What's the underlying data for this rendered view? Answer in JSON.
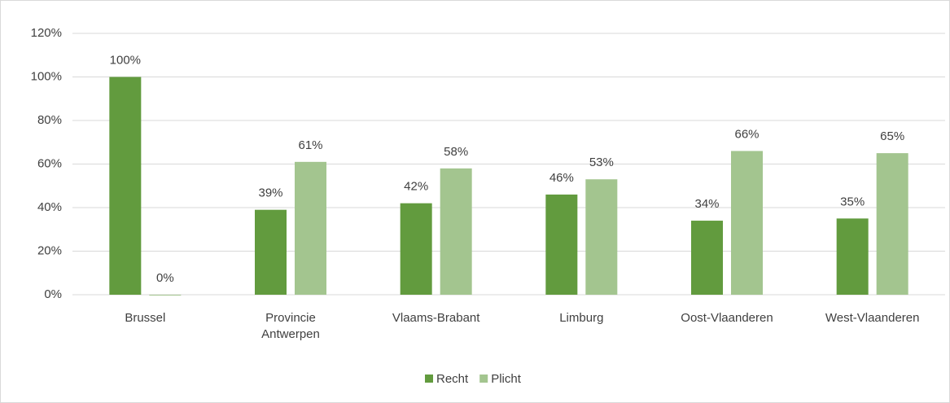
{
  "chart_data": {
    "type": "bar",
    "categories": [
      "Brussel",
      "Provincie Antwerpen",
      "Vlaams-Brabant",
      "Limburg",
      "Oost-Vlaanderen",
      "West-Vlaanderen"
    ],
    "series": [
      {
        "name": "Recht",
        "color": "#629b3e",
        "values": [
          100,
          39,
          42,
          46,
          34,
          35
        ],
        "value_labels": [
          "100%",
          "39%",
          "42%",
          "46%",
          "34%",
          "35%"
        ]
      },
      {
        "name": "Plicht",
        "color": "#a3c58f",
        "values": [
          0,
          61,
          58,
          53,
          66,
          65
        ],
        "value_labels": [
          "0%",
          "61%",
          "58%",
          "53%",
          "66%",
          "65%"
        ]
      }
    ],
    "ylim": [
      0,
      120
    ],
    "yticks": [
      {
        "value": 0,
        "label": "0%"
      },
      {
        "value": 20,
        "label": "20%"
      },
      {
        "value": 40,
        "label": "40%"
      },
      {
        "value": 60,
        "label": "60%"
      },
      {
        "value": 80,
        "label": "80%"
      },
      {
        "value": 100,
        "label": "100%"
      },
      {
        "value": 120,
        "label": "120%"
      }
    ],
    "grid": true,
    "legend": "bottom"
  }
}
